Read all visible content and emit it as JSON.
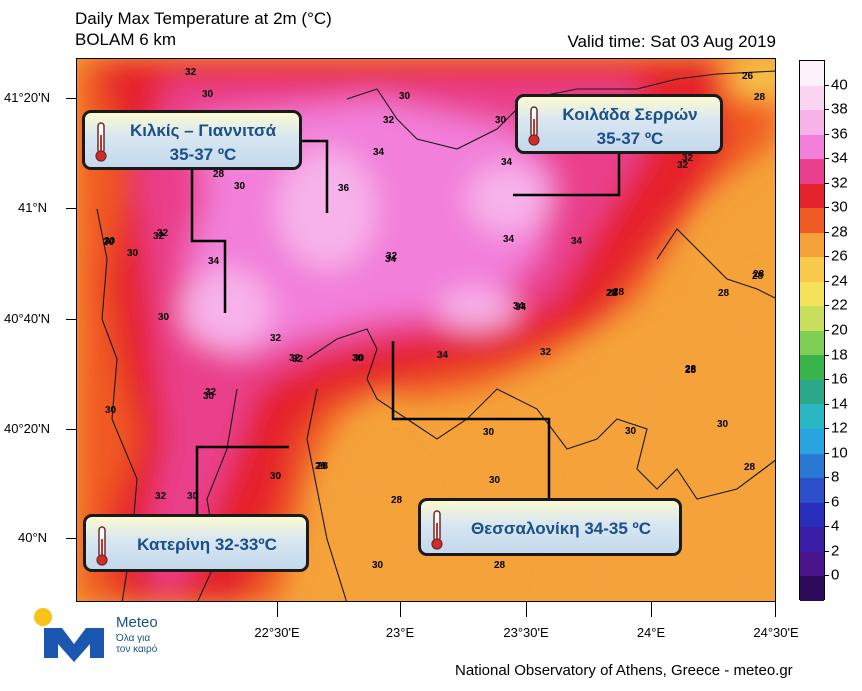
{
  "header": {
    "title": "Daily Max Temperature at 2m (°C)",
    "subtitle": "BOLAM 6 km",
    "valid_time": "Valid time: Sat 03 Aug 2019"
  },
  "axes": {
    "lat_labels": [
      "41°20'N",
      "41°N",
      "40°40'N",
      "40°20'N",
      "40°N"
    ],
    "lon_labels": [
      "22°30'E",
      "23°E",
      "23°30'E",
      "24°E",
      "24°30'E"
    ]
  },
  "colorbar": {
    "labels": [
      "40",
      "38",
      "36",
      "34",
      "32",
      "30",
      "28",
      "26",
      "24",
      "22",
      "20",
      "18",
      "16",
      "14",
      "12",
      "10",
      "8",
      "6",
      "4",
      "2",
      "0"
    ],
    "colors": [
      "#fdf2fb",
      "#fbd4f2",
      "#f7b2ea",
      "#f27fd9",
      "#ea3f8c",
      "#e5232c",
      "#f05a24",
      "#f5a23a",
      "#f9c94c",
      "#f4e25a",
      "#c7df5a",
      "#7fce55",
      "#38b44a",
      "#2aa688",
      "#29b7c4",
      "#2aa4e0",
      "#2a79d4",
      "#2a4fc8",
      "#2a2ebc",
      "#3a1ea6",
      "#4a148c",
      "#2d0a5a"
    ]
  },
  "callouts": [
    {
      "place": "Κιλκίς – Γιαννιτσά",
      "temp": "35-37 ºC"
    },
    {
      "place": "Κοιλάδα Σερρών",
      "temp": "35-37 ºC"
    },
    {
      "place": "Κατερίνη 32-33ºC",
      "temp": ""
    },
    {
      "place": "Θεσσαλονίκη 34-35 ºC",
      "temp": ""
    }
  ],
  "contour_labels": [
    "32",
    "30",
    "30",
    "32",
    "30",
    "26",
    "32",
    "32",
    "34",
    "34",
    "36",
    "28",
    "30",
    "32",
    "30",
    "30",
    "32",
    "34",
    "34",
    "34",
    "34",
    "32",
    "32",
    "30",
    "30",
    "30",
    "34",
    "34",
    "28",
    "30",
    "28",
    "28",
    "32",
    "34",
    "32",
    "30",
    "32",
    "28",
    "32",
    "28",
    "30",
    "28",
    "30",
    "30",
    "30",
    "28",
    "30",
    "32",
    "30",
    "28",
    "28",
    "30",
    "28",
    "28",
    "28",
    "28",
    "28",
    "32",
    "30"
  ],
  "footer": "National Observatory of Athens, Greece - meteo.gr",
  "logo": {
    "name": "Meteo",
    "tagline_1": "Όλα για",
    "tagline_2": "τον καιρό"
  }
}
